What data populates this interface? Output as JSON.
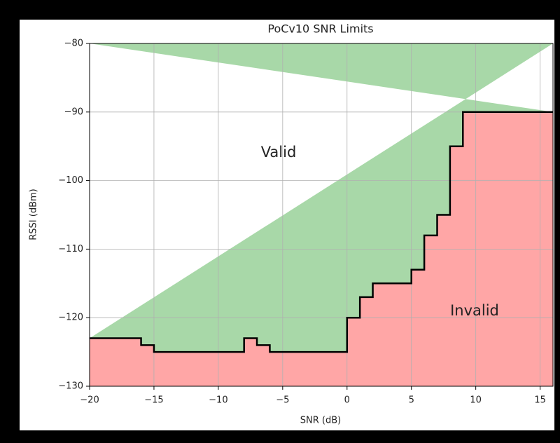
{
  "chart_data": {
    "type": "step",
    "title": "PoCv10 SNR Limits",
    "xlabel": "SNR (dB)",
    "ylabel": "RSSI (dBm)",
    "x": [
      -20,
      -16,
      -15,
      -8,
      -7,
      -6,
      0,
      1,
      2,
      5,
      6,
      7,
      8,
      9
    ],
    "values": [
      -123,
      -124,
      -125,
      -123,
      -124,
      -125,
      -120,
      -117,
      -115,
      -113,
      -108,
      -105,
      -95,
      -90
    ],
    "line_color": "#000000",
    "above_color": "#a8d8a8",
    "below_color": "#ffa6a6",
    "annotations": [
      "Valid",
      "Invalid"
    ],
    "xlim": [
      -20,
      16
    ],
    "ylim": [
      -130,
      -80
    ],
    "xticks": [
      {
        "value": -20,
        "label": "−20"
      },
      {
        "value": -15,
        "label": "−15"
      },
      {
        "value": -10,
        "label": "−10"
      },
      {
        "value": -5,
        "label": "−5"
      },
      0,
      5,
      10,
      15
    ],
    "yticks": [
      {
        "value": -130,
        "label": "−130"
      },
      {
        "value": -120,
        "label": "−120"
      },
      {
        "value": -110,
        "label": "−110"
      },
      {
        "value": -100,
        "label": "−100"
      },
      {
        "value": -90,
        "label": "−90"
      },
      {
        "value": -80,
        "label": "−80"
      }
    ],
    "grid": true
  }
}
